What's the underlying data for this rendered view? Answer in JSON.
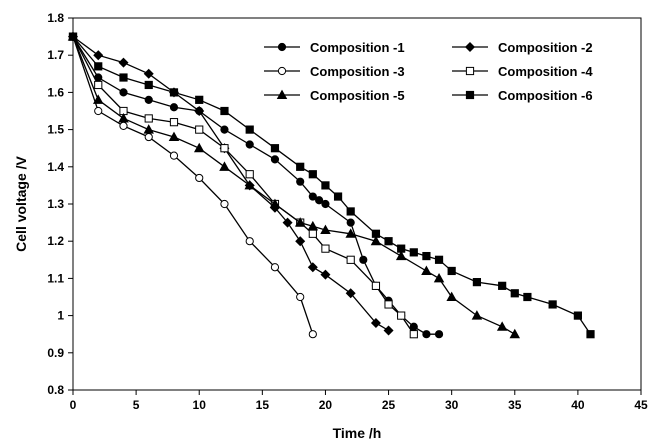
{
  "chart_data": {
    "type": "line",
    "title": "",
    "xlabel": "Time /h",
    "ylabel": "Cell voltage /V",
    "xlim": [
      0,
      45
    ],
    "ylim": [
      0.8,
      1.8
    ],
    "xticks": [
      0,
      5,
      10,
      15,
      20,
      25,
      30,
      35,
      40,
      45
    ],
    "xtick_labels": [
      "0",
      "5",
      "10",
      "15",
      "20",
      "25",
      "30",
      "35",
      "40",
      "45"
    ],
    "yticks": [
      0.8,
      0.9,
      1.0,
      1.1,
      1.2,
      1.3,
      1.4,
      1.5,
      1.6,
      1.7,
      1.8
    ],
    "ytick_labels": [
      "0.8",
      "0.9",
      "1",
      "1.1",
      "1.2",
      "1.3",
      "1.4",
      "1.5",
      "1.6",
      "1.7",
      "1.8"
    ],
    "grid": false,
    "legend_position": "top-right",
    "series": [
      {
        "name": "Composition -1",
        "marker": "circle-filled",
        "x": [
          0,
          2,
          4,
          6,
          8,
          10,
          12,
          14,
          16,
          18,
          19,
          19.5,
          20,
          22,
          23,
          24,
          25,
          26,
          27,
          28,
          29
        ],
        "y": [
          1.75,
          1.64,
          1.6,
          1.58,
          1.56,
          1.55,
          1.5,
          1.46,
          1.42,
          1.36,
          1.32,
          1.31,
          1.3,
          1.25,
          1.15,
          1.08,
          1.04,
          1.0,
          0.97,
          0.95,
          0.95
        ]
      },
      {
        "name": "Composition -2",
        "marker": "diamond-filled",
        "x": [
          0,
          2,
          4,
          6,
          8,
          10,
          12,
          14,
          16,
          17,
          18,
          19,
          20,
          22,
          24,
          25
        ],
        "y": [
          1.75,
          1.7,
          1.68,
          1.65,
          1.6,
          1.55,
          1.45,
          1.35,
          1.29,
          1.25,
          1.2,
          1.13,
          1.11,
          1.06,
          0.98,
          0.96
        ]
      },
      {
        "name": "Composition -3",
        "marker": "circle-open",
        "x": [
          0,
          2,
          4,
          6,
          8,
          10,
          12,
          14,
          16,
          18,
          19
        ],
        "y": [
          1.75,
          1.55,
          1.51,
          1.48,
          1.43,
          1.37,
          1.3,
          1.2,
          1.13,
          1.05,
          0.95
        ]
      },
      {
        "name": "Composition -4",
        "marker": "square-open",
        "x": [
          0,
          2,
          4,
          6,
          8,
          10,
          12,
          14,
          16,
          18,
          19,
          20,
          22,
          24,
          25,
          26,
          27
        ],
        "y": [
          1.75,
          1.62,
          1.55,
          1.53,
          1.52,
          1.5,
          1.45,
          1.38,
          1.3,
          1.25,
          1.22,
          1.18,
          1.15,
          1.08,
          1.03,
          1.0,
          0.95
        ]
      },
      {
        "name": "Composition -5",
        "marker": "triangle-filled",
        "x": [
          0,
          2,
          4,
          6,
          8,
          10,
          12,
          14,
          16,
          18,
          19,
          20,
          22,
          24,
          26,
          28,
          29,
          30,
          32,
          34,
          35
        ],
        "y": [
          1.75,
          1.58,
          1.53,
          1.5,
          1.48,
          1.45,
          1.4,
          1.35,
          1.3,
          1.25,
          1.24,
          1.23,
          1.22,
          1.2,
          1.16,
          1.12,
          1.1,
          1.05,
          1.0,
          0.97,
          0.95
        ]
      },
      {
        "name": "Composition -6",
        "marker": "square-filled",
        "x": [
          0,
          2,
          4,
          6,
          8,
          10,
          12,
          14,
          16,
          18,
          19,
          20,
          21,
          22,
          24,
          25,
          26,
          27,
          28,
          29,
          30,
          32,
          34,
          35,
          36,
          38,
          40,
          41
        ],
        "y": [
          1.75,
          1.67,
          1.64,
          1.62,
          1.6,
          1.58,
          1.55,
          1.5,
          1.45,
          1.4,
          1.38,
          1.35,
          1.32,
          1.28,
          1.22,
          1.2,
          1.18,
          1.17,
          1.16,
          1.15,
          1.12,
          1.09,
          1.08,
          1.06,
          1.05,
          1.03,
          1.0,
          0.95
        ]
      }
    ]
  }
}
